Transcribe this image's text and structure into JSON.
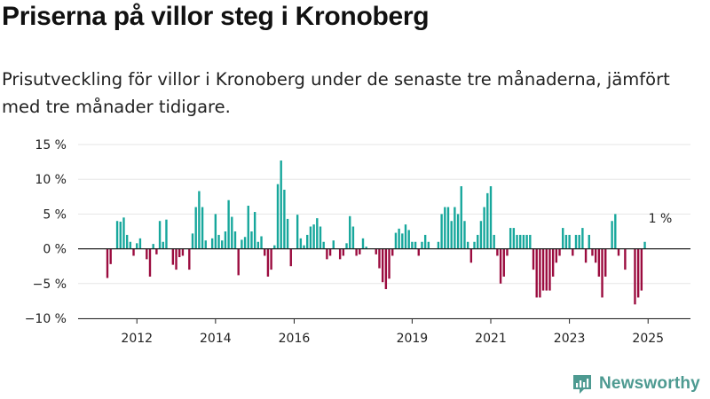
{
  "header": {
    "title": "Priserna på villor steg i Kronoberg",
    "subtitle": "Prisutveckling för villor i Kronoberg under de senaste tre månaderna, jämfört med tre månader tidigare."
  },
  "logo": {
    "text": "Newsworthy",
    "icon": "newsworthy-logo-icon"
  },
  "colors": {
    "positive": "#17a79c",
    "negative": "#9b0c3f",
    "axis": "#222222",
    "grid": "#e6e6e6",
    "logo": "#4d9a91"
  },
  "chart_data": {
    "type": "bar",
    "title": "Priserna på villor steg i Kronoberg",
    "subtitle": "Prisutveckling för villor i Kronoberg under de senaste tre månaderna, jämfört med tre månader tidigare.",
    "xlabel": "",
    "ylabel": "",
    "unit": "%",
    "ylim": [
      -10,
      15
    ],
    "yticks": [
      -10,
      -5,
      0,
      5,
      10,
      15
    ],
    "ytick_labels": [
      "−10 %",
      "−5 %",
      "0 %",
      "5 %",
      "10 %",
      "15 %"
    ],
    "xticks": [
      2012,
      2014,
      2016,
      2019,
      2021,
      2023,
      2025
    ],
    "xtick_labels": [
      "2012",
      "2014",
      "2016",
      "2019",
      "2021",
      "2023",
      "2025"
    ],
    "grid": true,
    "legend": "none",
    "x_range": [
      "2011-04",
      "2025-05"
    ],
    "annotation": {
      "text": "1 %",
      "x": "2025-05",
      "y": 1
    },
    "series": [
      {
        "values": [
          [
            "2011-04",
            -4.2
          ],
          [
            "2011-05",
            -2.2
          ],
          [
            "2011-06",
            0.0
          ],
          [
            "2011-07",
            4.0
          ],
          [
            "2011-08",
            3.9
          ],
          [
            "2011-09",
            4.5
          ],
          [
            "2011-10",
            2.0
          ],
          [
            "2011-11",
            1.0
          ],
          [
            "2011-12",
            -1.0
          ],
          [
            "2012-01",
            0.8
          ],
          [
            "2012-02",
            1.5
          ],
          [
            "2012-03",
            0.0
          ],
          [
            "2012-04",
            -1.5
          ],
          [
            "2012-05",
            -4.0
          ],
          [
            "2012-06",
            0.7
          ],
          [
            "2012-07",
            -0.8
          ],
          [
            "2012-08",
            4.0
          ],
          [
            "2012-09",
            1.0
          ],
          [
            "2012-10",
            4.2
          ],
          [
            "2012-11",
            0.0
          ],
          [
            "2012-12",
            -2.3
          ],
          [
            "2013-01",
            -3.0
          ],
          [
            "2013-02",
            -1.2
          ],
          [
            "2013-03",
            -1.0
          ],
          [
            "2013-04",
            0.0
          ],
          [
            "2013-05",
            -3.0
          ],
          [
            "2013-06",
            2.2
          ],
          [
            "2013-07",
            6.0
          ],
          [
            "2013-08",
            8.3
          ],
          [
            "2013-09",
            6.0
          ],
          [
            "2013-10",
            1.2
          ],
          [
            "2013-11",
            0.0
          ],
          [
            "2013-12",
            1.5
          ],
          [
            "2014-01",
            5.0
          ],
          [
            "2014-02",
            2.0
          ],
          [
            "2014-03",
            1.2
          ],
          [
            "2014-04",
            2.5
          ],
          [
            "2014-05",
            7.0
          ],
          [
            "2014-06",
            4.6
          ],
          [
            "2014-07",
            2.5
          ],
          [
            "2014-08",
            -3.8
          ],
          [
            "2014-09",
            1.3
          ],
          [
            "2014-10",
            1.7
          ],
          [
            "2014-11",
            6.2
          ],
          [
            "2014-12",
            2.5
          ],
          [
            "2015-01",
            5.3
          ],
          [
            "2015-02",
            1.0
          ],
          [
            "2015-03",
            1.8
          ],
          [
            "2015-04",
            -1.0
          ],
          [
            "2015-05",
            -4.0
          ],
          [
            "2015-06",
            -3.0
          ],
          [
            "2015-07",
            0.5
          ],
          [
            "2015-08",
            9.3
          ],
          [
            "2015-09",
            12.7
          ],
          [
            "2015-10",
            8.5
          ],
          [
            "2015-11",
            4.3
          ],
          [
            "2015-12",
            -2.5
          ],
          [
            "2016-01",
            0.0
          ],
          [
            "2016-02",
            4.9
          ],
          [
            "2016-03",
            1.5
          ],
          [
            "2016-04",
            0.5
          ],
          [
            "2016-05",
            2.0
          ],
          [
            "2016-06",
            3.2
          ],
          [
            "2016-07",
            3.5
          ],
          [
            "2016-08",
            4.4
          ],
          [
            "2016-09",
            3.2
          ],
          [
            "2016-10",
            1.0
          ],
          [
            "2016-11",
            -1.5
          ],
          [
            "2016-12",
            -1.0
          ],
          [
            "2017-01",
            1.2
          ],
          [
            "2017-02",
            0.0
          ],
          [
            "2017-03",
            -1.5
          ],
          [
            "2017-04",
            -1.0
          ],
          [
            "2017-05",
            0.8
          ],
          [
            "2017-06",
            4.7
          ],
          [
            "2017-07",
            3.2
          ],
          [
            "2017-08",
            -1.0
          ],
          [
            "2017-09",
            -0.8
          ],
          [
            "2017-10",
            1.5
          ],
          [
            "2017-11",
            0.3
          ],
          [
            "2017-12",
            0.0
          ],
          [
            "2018-01",
            0.0
          ],
          [
            "2018-02",
            -0.8
          ],
          [
            "2018-03",
            -2.8
          ],
          [
            "2018-04",
            -4.8
          ],
          [
            "2018-05",
            -5.8
          ],
          [
            "2018-06",
            -4.3
          ],
          [
            "2018-07",
            -1.0
          ],
          [
            "2018-08",
            2.3
          ],
          [
            "2018-09",
            2.9
          ],
          [
            "2018-10",
            2.2
          ],
          [
            "2018-11",
            3.5
          ],
          [
            "2018-12",
            2.7
          ],
          [
            "2019-01",
            1.0
          ],
          [
            "2019-02",
            1.0
          ],
          [
            "2019-03",
            -1.0
          ],
          [
            "2019-04",
            1.0
          ],
          [
            "2019-05",
            2.0
          ],
          [
            "2019-06",
            1.0
          ],
          [
            "2019-07",
            0.0
          ],
          [
            "2019-08",
            0.0
          ],
          [
            "2019-09",
            1.0
          ],
          [
            "2019-10",
            5.0
          ],
          [
            "2019-11",
            6.0
          ],
          [
            "2019-12",
            6.0
          ],
          [
            "2020-01",
            4.0
          ],
          [
            "2020-02",
            6.0
          ],
          [
            "2020-03",
            5.0
          ],
          [
            "2020-04",
            9.0
          ],
          [
            "2020-05",
            4.0
          ],
          [
            "2020-06",
            1.0
          ],
          [
            "2020-07",
            -2.0
          ],
          [
            "2020-08",
            1.0
          ],
          [
            "2020-09",
            2.0
          ],
          [
            "2020-10",
            4.0
          ],
          [
            "2020-11",
            6.0
          ],
          [
            "2020-12",
            8.0
          ],
          [
            "2021-01",
            9.0
          ],
          [
            "2021-02",
            2.0
          ],
          [
            "2021-03",
            -1.0
          ],
          [
            "2021-04",
            -5.0
          ],
          [
            "2021-05",
            -4.0
          ],
          [
            "2021-06",
            -1.0
          ],
          [
            "2021-07",
            3.0
          ],
          [
            "2021-08",
            3.0
          ],
          [
            "2021-09",
            2.0
          ],
          [
            "2021-10",
            2.0
          ],
          [
            "2021-11",
            2.0
          ],
          [
            "2021-12",
            2.0
          ],
          [
            "2022-01",
            2.0
          ],
          [
            "2022-02",
            -3.0
          ],
          [
            "2022-03",
            -7.0
          ],
          [
            "2022-04",
            -7.0
          ],
          [
            "2022-05",
            -6.0
          ],
          [
            "2022-06",
            -6.0
          ],
          [
            "2022-07",
            -6.0
          ],
          [
            "2022-08",
            -4.0
          ],
          [
            "2022-09",
            -2.0
          ],
          [
            "2022-10",
            -1.0
          ],
          [
            "2022-11",
            3.0
          ],
          [
            "2022-12",
            2.0
          ],
          [
            "2023-01",
            2.0
          ],
          [
            "2023-02",
            -1.0
          ],
          [
            "2023-03",
            2.0
          ],
          [
            "2023-04",
            2.0
          ],
          [
            "2023-05",
            3.0
          ],
          [
            "2023-06",
            -2.0
          ],
          [
            "2023-07",
            2.0
          ],
          [
            "2023-08",
            -1.0
          ],
          [
            "2023-09",
            -2.0
          ],
          [
            "2023-10",
            -4.0
          ],
          [
            "2023-11",
            -7.0
          ],
          [
            "2023-12",
            -4.0
          ],
          [
            "2024-01",
            0.0
          ],
          [
            "2024-02",
            4.0
          ],
          [
            "2024-03",
            5.0
          ],
          [
            "2024-04",
            -1.0
          ],
          [
            "2024-05",
            0.0
          ],
          [
            "2024-06",
            -3.0
          ],
          [
            "2024-07",
            0.0
          ],
          [
            "2024-08",
            0.0
          ],
          [
            "2024-09",
            -8.0
          ],
          [
            "2024-10",
            -7.0
          ],
          [
            "2024-11",
            -6.0
          ],
          [
            "2024-12",
            1.0
          ]
        ]
      }
    ]
  }
}
